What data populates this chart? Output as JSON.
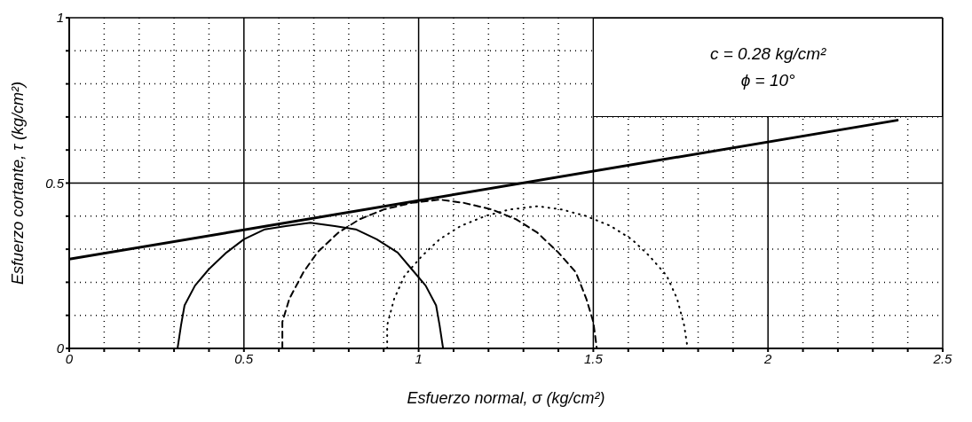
{
  "chart_data": {
    "type": "line",
    "xlabel": "Esfuerzo normal,  σ  (kg/cm²)",
    "ylabel": "Esfuerzo cortante,  τ  (kg/cm²)",
    "annotations": [
      "c = 0.28 kg/cm²",
      "ϕ = 10°"
    ],
    "xlim": [
      0,
      2.5
    ],
    "ylim": [
      0,
      1
    ],
    "xticks": [
      0,
      {
        "value": 0.1,
        "label": null
      },
      {
        "value": 0.2,
        "label": null
      },
      {
        "value": 0.3,
        "label": null
      },
      {
        "value": 0.4,
        "label": null
      },
      0.5,
      {
        "value": 0.6,
        "label": null
      },
      {
        "value": 0.7,
        "label": null
      },
      {
        "value": 0.8,
        "label": null
      },
      {
        "value": 0.9,
        "label": null
      },
      1,
      {
        "value": 1.1,
        "label": null
      },
      {
        "value": 1.2,
        "label": null
      },
      {
        "value": 1.3,
        "label": null
      },
      {
        "value": 1.4,
        "label": null
      },
      1.5,
      {
        "value": 1.6,
        "label": null
      },
      {
        "value": 1.7,
        "label": null
      },
      {
        "value": 1.8,
        "label": null
      },
      {
        "value": 1.9,
        "label": null
      },
      2,
      {
        "value": 2.1,
        "label": null
      },
      {
        "value": 2.2,
        "label": null
      },
      {
        "value": 2.3,
        "label": null
      },
      {
        "value": 2.4,
        "label": null
      },
      2.5
    ],
    "yticks": [
      0,
      {
        "value": 0.1,
        "label": null
      },
      {
        "value": 0.2,
        "label": null
      },
      {
        "value": 0.3,
        "label": null
      },
      {
        "value": 0.4,
        "label": null
      },
      0.5,
      {
        "value": 0.6,
        "label": null
      },
      {
        "value": 0.7,
        "label": null
      },
      {
        "value": 0.8,
        "label": null
      },
      {
        "value": 0.9,
        "label": null
      },
      1
    ],
    "grid": true,
    "series": [
      {
        "color": "#000000",
        "line_style": "solid",
        "x": [
          0,
          2.37
        ],
        "values": [
          0.27,
          0.69
        ]
      },
      {
        "color": "#000000",
        "line_style": "solid",
        "x": [
          0.31,
          0.32,
          0.33,
          0.36,
          0.4,
          0.45,
          0.5,
          0.56,
          0.62,
          0.69,
          0.76,
          0.82,
          0.88,
          0.94,
          0.98,
          1.02,
          1.05,
          1.06,
          1.07
        ],
        "values": [
          0,
          0.07,
          0.13,
          0.19,
          0.24,
          0.29,
          0.33,
          0.36,
          0.37,
          0.38,
          0.37,
          0.36,
          0.33,
          0.29,
          0.24,
          0.19,
          0.13,
          0.07,
          0
        ]
      },
      {
        "color": "#000000",
        "line_style": "dashed",
        "x": [
          0.61,
          0.61,
          0.63,
          0.67,
          0.71,
          0.77,
          0.83,
          0.9,
          0.98,
          1.06,
          1.13,
          1.21,
          1.28,
          1.34,
          1.4,
          1.45,
          1.48,
          1.5,
          1.51
        ],
        "values": [
          0,
          0.08,
          0.15,
          0.23,
          0.29,
          0.35,
          0.39,
          0.42,
          0.44,
          0.45,
          0.44,
          0.42,
          0.39,
          0.35,
          0.29,
          0.23,
          0.15,
          0.08,
          0
        ]
      },
      {
        "color": "#000000",
        "line_style": "dotted",
        "x": [
          0.91,
          0.91,
          0.93,
          0.96,
          1.01,
          1.06,
          1.12,
          1.19,
          1.26,
          1.34,
          1.41,
          1.48,
          1.55,
          1.61,
          1.66,
          1.71,
          1.74,
          1.76,
          1.77
        ],
        "values": [
          0,
          0.07,
          0.15,
          0.22,
          0.28,
          0.33,
          0.37,
          0.4,
          0.42,
          0.43,
          0.42,
          0.4,
          0.37,
          0.33,
          0.28,
          0.22,
          0.15,
          0.07,
          0
        ]
      }
    ]
  }
}
